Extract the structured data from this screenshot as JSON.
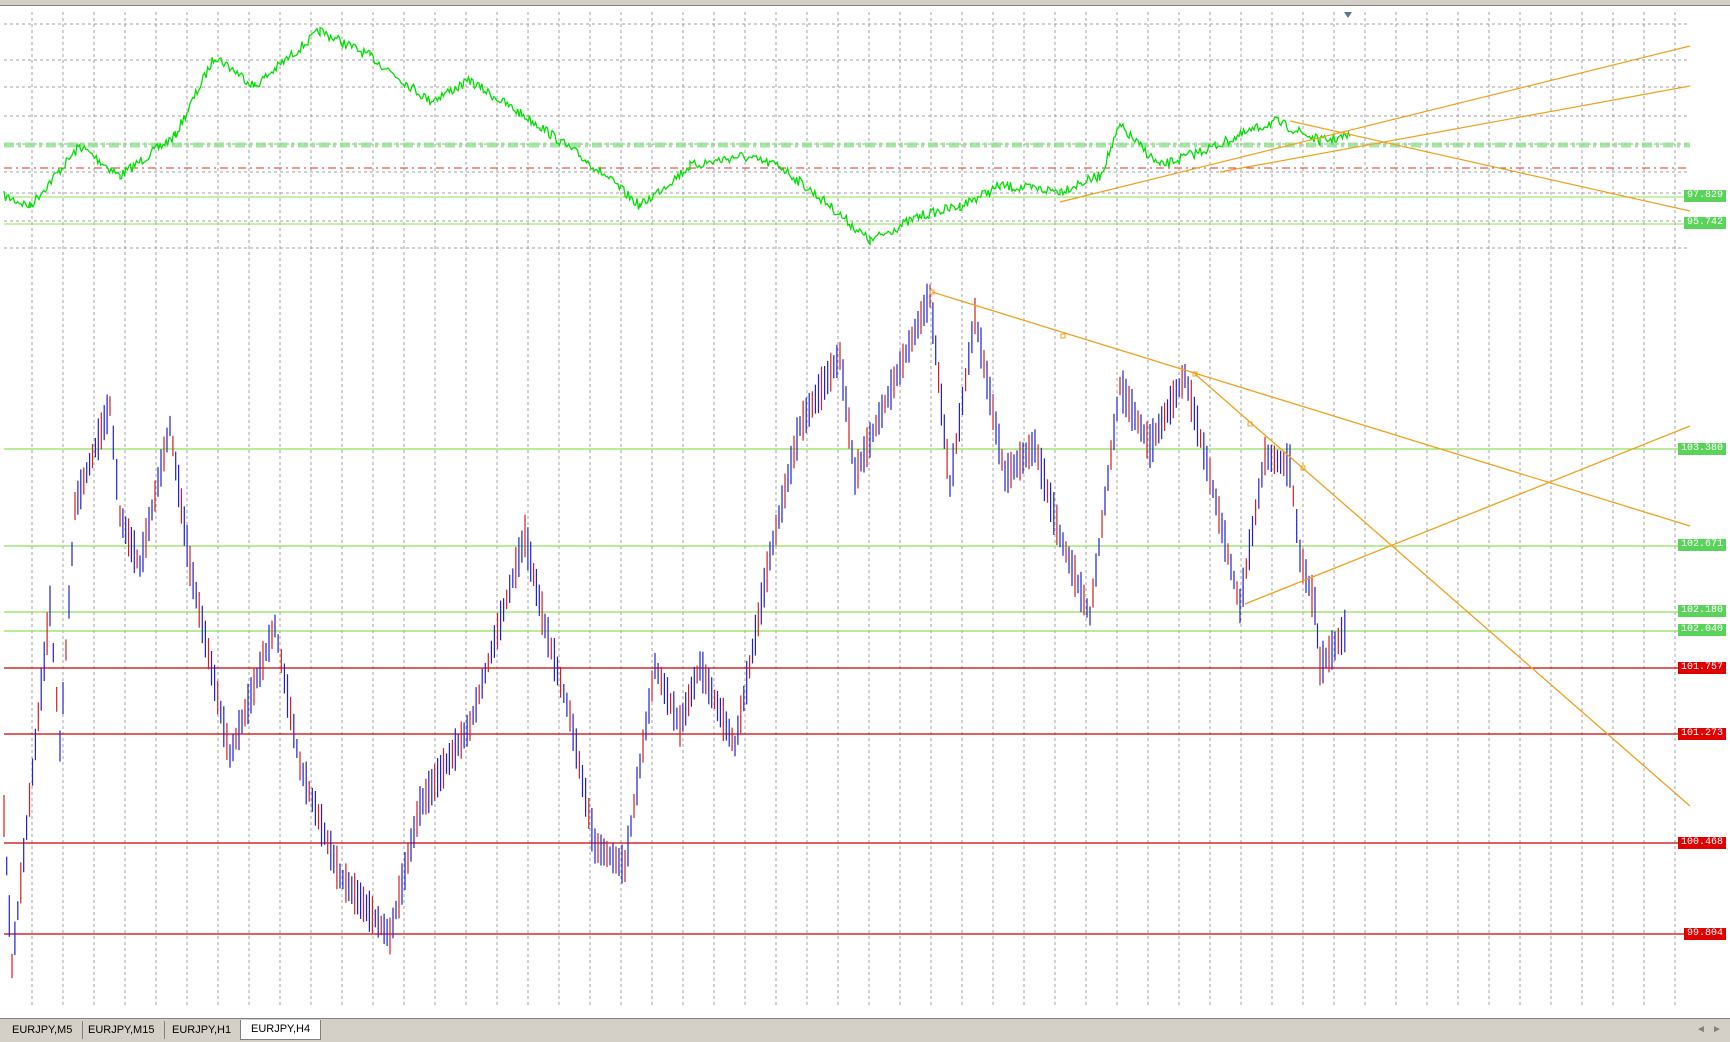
{
  "window": {
    "title": "EURJPY,H4"
  },
  "tabs": [
    {
      "label": "EURJPY,M5",
      "active": false
    },
    {
      "label": "EURJPY,M15",
      "active": false
    },
    {
      "label": "EURJPY,H1",
      "active": false
    },
    {
      "label": "EURJPY,H4",
      "active": true
    }
  ],
  "upper_panel": {
    "price_labels": [
      {
        "text": "97.829",
        "color": "#5ad35a"
      },
      {
        "text": "95.742",
        "color": "#5ad35a"
      }
    ]
  },
  "main_panel": {
    "price_labels": [
      {
        "text": "103.380",
        "color": "#5ad35a"
      },
      {
        "text": "102.671",
        "color": "#5ad35a"
      },
      {
        "text": "102.180",
        "color": "#5ad35a"
      },
      {
        "text": "102.040",
        "color": "#5ad35a"
      },
      {
        "text": "101.757",
        "color": "#e00000"
      },
      {
        "text": "101.273",
        "color": "#e00000"
      },
      {
        "text": "100.468",
        "color": "#e00000"
      },
      {
        "text": "99.804",
        "color": "#e00000"
      }
    ]
  },
  "colors": {
    "green_line": "#00e000",
    "level_green": "#8fe05a",
    "level_red": "#d00000",
    "trendline": "#f0a020",
    "bar_up": "#2020d0",
    "bar_down": "#d02020",
    "grid": "#a0a0a0"
  },
  "scroll_arrows": {
    "left": "◄",
    "right": "►"
  }
}
